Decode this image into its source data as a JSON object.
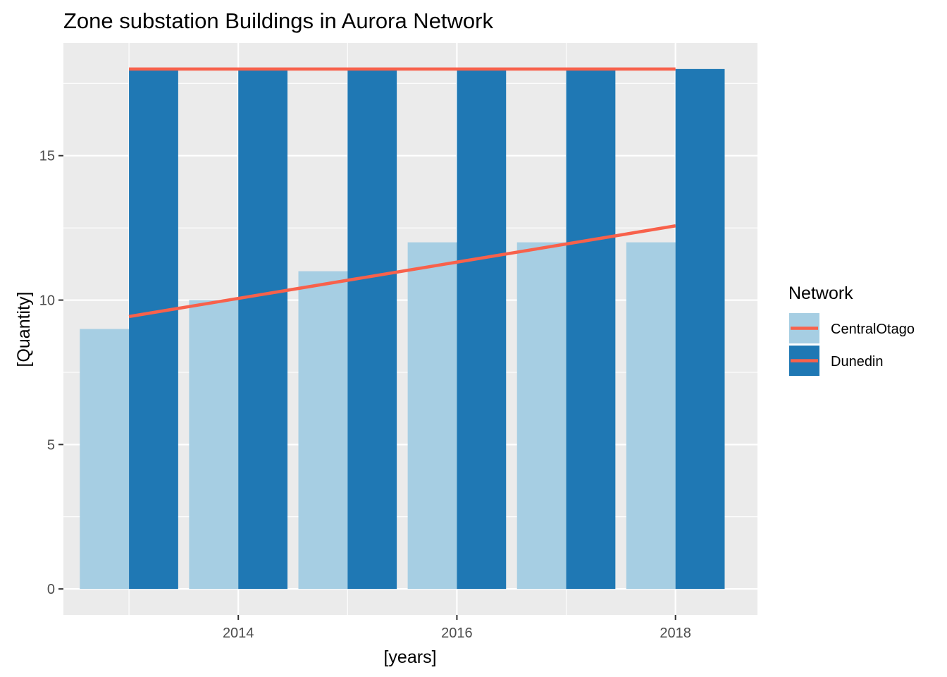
{
  "chart_data": {
    "type": "bar",
    "title": "Zone substation Buildings in Aurora Network",
    "xlabel": "[years]",
    "ylabel": "[Quantity]",
    "x": [
      2013,
      2014,
      2015,
      2016,
      2017,
      2018
    ],
    "x_ticks": [
      2014,
      2016,
      2018
    ],
    "xlim": [
      2012.4,
      2018.75
    ],
    "y_ticks": [
      0,
      5,
      10,
      15
    ],
    "ylim": [
      -0.9,
      18.9
    ],
    "series": [
      {
        "name": "CentralOtago",
        "values": [
          9,
          10,
          11,
          12,
          12,
          12
        ],
        "color": "#a6cee3"
      },
      {
        "name": "Dunedin",
        "values": [
          18,
          18,
          18,
          18,
          18,
          18
        ],
        "color": "#1f78b4"
      }
    ],
    "trend_lines": [
      {
        "series": "CentralOtago",
        "x": [
          2013,
          2018
        ],
        "y": [
          9.43,
          12.57
        ],
        "color": "#f8614b"
      },
      {
        "series": "Dunedin",
        "x": [
          2013,
          2018
        ],
        "y": [
          18,
          18
        ],
        "color": "#f8614b"
      }
    ],
    "legend": {
      "title": "Network",
      "position": "right",
      "items": [
        "CentralOtago",
        "Dunedin"
      ]
    },
    "grid": true,
    "panel_color": "#ebebeb",
    "grid_color": "#ffffff"
  }
}
